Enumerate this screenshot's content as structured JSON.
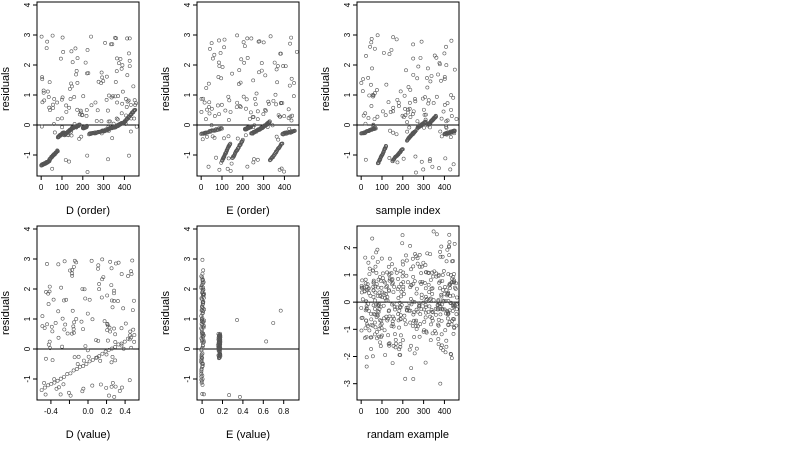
{
  "figure": {
    "layout": "2x3 grid, 6 residual scatter plots"
  },
  "chart_data": [
    {
      "type": "scatter",
      "xlabel": "D (order)",
      "ylabel": "residuals",
      "xlim": [
        -20,
        470
      ],
      "ylim": [
        -1.7,
        4.1
      ],
      "xticks": [
        0,
        100,
        200,
        300,
        400
      ],
      "yticks": [
        -1,
        0,
        1,
        2,
        3,
        4
      ],
      "hline": 0,
      "pattern": "order",
      "n": 460,
      "clusters": [
        [
          0,
          40,
          -1.35,
          -1.2
        ],
        [
          40,
          80,
          -1.15,
          -0.85
        ],
        [
          80,
          110,
          -0.4,
          -0.25
        ],
        [
          110,
          150,
          -0.35,
          -0.1
        ],
        [
          150,
          185,
          -0.1,
          0.0
        ],
        [
          200,
          220,
          -0.1,
          -0.05
        ],
        [
          230,
          300,
          -0.3,
          -0.2
        ],
        [
          300,
          360,
          -0.2,
          -0.05
        ],
        [
          360,
          400,
          -0.05,
          0.1
        ],
        [
          400,
          450,
          0.1,
          0.5
        ]
      ],
      "scatter_y": [
        -1.6,
        3.9
      ],
      "n_scatter": 140
    },
    {
      "type": "scatter",
      "xlabel": "E (order)",
      "ylabel": "residuals",
      "xlim": [
        -20,
        470
      ],
      "ylim": [
        -1.7,
        4.1
      ],
      "xticks": [
        0,
        100,
        200,
        300,
        400
      ],
      "yticks": [
        -1,
        0,
        1,
        2,
        3,
        4
      ],
      "hline": 0,
      "pattern": "order",
      "n": 460,
      "clusters": [
        [
          0,
          100,
          -0.3,
          -0.1
        ],
        [
          100,
          140,
          -1.2,
          -0.6
        ],
        [
          150,
          200,
          -1.1,
          -0.5
        ],
        [
          210,
          240,
          -0.15,
          -0.05
        ],
        [
          240,
          290,
          -0.3,
          -0.1
        ],
        [
          290,
          330,
          -0.1,
          0.1
        ],
        [
          330,
          390,
          -1.2,
          -0.6
        ],
        [
          390,
          450,
          -0.3,
          -0.2
        ]
      ],
      "scatter_y": [
        -1.6,
        3.9
      ],
      "n_scatter": 140
    },
    {
      "type": "scatter",
      "xlabel": "sample index",
      "ylabel": "residuals",
      "xlim": [
        -20,
        470
      ],
      "ylim": [
        -1.7,
        4.1
      ],
      "xticks": [
        0,
        100,
        200,
        300,
        400
      ],
      "yticks": [
        -1,
        0,
        1,
        2,
        3,
        4
      ],
      "hline": 0,
      "pattern": "order",
      "n": 460,
      "clusters": [
        [
          0,
          70,
          -0.3,
          -0.1
        ],
        [
          80,
          120,
          -1.3,
          -0.7
        ],
        [
          150,
          200,
          -1.2,
          -0.8
        ],
        [
          220,
          260,
          -0.5,
          -0.2
        ],
        [
          270,
          310,
          -0.1,
          0.1
        ],
        [
          320,
          360,
          0.0,
          0.3
        ],
        [
          400,
          450,
          -0.3,
          -0.2
        ]
      ],
      "scatter_y": [
        -1.6,
        3.9
      ],
      "n_scatter": 140
    },
    {
      "type": "scatter",
      "xlabel": "D (value)",
      "ylabel": "residuals",
      "xlim": [
        -0.55,
        0.55
      ],
      "ylim": [
        -1.7,
        4.1
      ],
      "xticks": [
        -0.4,
        -0.2,
        0.0,
        0.2,
        0.4
      ],
      "xtick_labels": [
        "-0.4",
        "",
        "0.0",
        "0.2",
        "0.4"
      ],
      "yticks": [
        -1,
        0,
        1,
        2,
        3,
        4
      ],
      "hline": 0,
      "pattern": "value",
      "n": 460,
      "clusters": [
        [
          -0.5,
          0.5,
          -1.35,
          0.45
        ]
      ],
      "scatter_y": [
        -1.6,
        3.9
      ],
      "n_scatter": 140
    },
    {
      "type": "scatter",
      "xlabel": "E (value)",
      "ylabel": "residuals",
      "xlim": [
        -0.05,
        0.95
      ],
      "ylim": [
        -1.7,
        4.1
      ],
      "xticks": [
        0.0,
        0.2,
        0.4,
        0.6,
        0.8
      ],
      "yticks": [
        -1,
        0,
        1,
        2,
        3,
        4
      ],
      "hline": 0,
      "pattern": "evalue",
      "n": 460,
      "clusters": [
        [
          0.0,
          0.0,
          -1.2,
          2.5
        ],
        [
          0.17,
          0.17,
          -0.3,
          0.5
        ]
      ],
      "scatter_y": [
        -1.6,
        3.9
      ],
      "n_scatter": 40
    },
    {
      "type": "scatter",
      "xlabel": "randam example",
      "ylabel": "residuals",
      "xlim": [
        -20,
        470
      ],
      "ylim": [
        -3.6,
        2.8
      ],
      "xticks": [
        0,
        100,
        200,
        300,
        400
      ],
      "yticks": [
        -3,
        -2,
        -1,
        0,
        1,
        2
      ],
      "hline": 0,
      "pattern": "random",
      "n": 460,
      "clusters": [],
      "scatter_y": [
        -3.4,
        2.6
      ],
      "n_scatter": 460
    }
  ]
}
